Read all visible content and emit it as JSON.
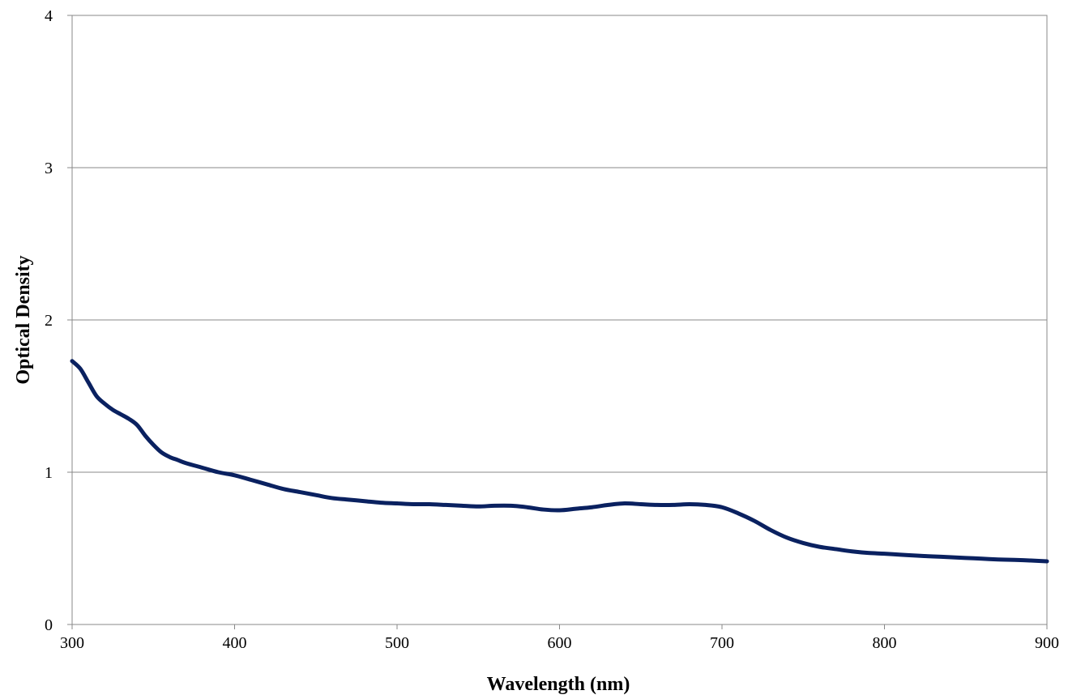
{
  "chart_data": {
    "type": "line",
    "title": "",
    "xlabel": "Wavelength (nm)",
    "ylabel": "Optical Density",
    "xlim": [
      300,
      900
    ],
    "ylim": [
      0,
      4
    ],
    "x_ticks": [
      300,
      400,
      500,
      600,
      700,
      800,
      900
    ],
    "y_ticks": [
      0,
      1,
      2,
      3,
      4
    ],
    "grid": "horizontal",
    "legend": "none",
    "colors": {
      "series": "#0a2160",
      "grid": "#888888",
      "axis": "#888888"
    },
    "series": [
      {
        "x": [
          300,
          305,
          310,
          315,
          320,
          325,
          330,
          335,
          340,
          345,
          350,
          355,
          360,
          365,
          370,
          380,
          390,
          400,
          410,
          420,
          430,
          440,
          450,
          460,
          470,
          480,
          490,
          500,
          510,
          520,
          530,
          540,
          550,
          560,
          570,
          580,
          590,
          600,
          610,
          620,
          630,
          640,
          650,
          660,
          670,
          680,
          690,
          700,
          710,
          720,
          730,
          740,
          750,
          760,
          770,
          780,
          790,
          800,
          810,
          820,
          830,
          840,
          850,
          860,
          870,
          880,
          890,
          900
        ],
        "values": [
          1.73,
          1.68,
          1.59,
          1.5,
          1.45,
          1.41,
          1.38,
          1.35,
          1.31,
          1.24,
          1.18,
          1.13,
          1.1,
          1.08,
          1.06,
          1.03,
          1.0,
          0.98,
          0.95,
          0.92,
          0.89,
          0.87,
          0.85,
          0.83,
          0.82,
          0.81,
          0.8,
          0.795,
          0.79,
          0.79,
          0.785,
          0.78,
          0.775,
          0.78,
          0.78,
          0.77,
          0.755,
          0.75,
          0.76,
          0.77,
          0.785,
          0.795,
          0.79,
          0.785,
          0.785,
          0.79,
          0.785,
          0.77,
          0.73,
          0.68,
          0.62,
          0.57,
          0.535,
          0.51,
          0.495,
          0.48,
          0.47,
          0.465,
          0.458,
          0.452,
          0.447,
          0.442,
          0.437,
          0.432,
          0.427,
          0.424,
          0.42,
          0.415
        ]
      }
    ]
  }
}
